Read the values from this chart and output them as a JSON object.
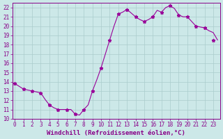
{
  "x": [
    0,
    0.5,
    1,
    1.5,
    2,
    2.5,
    3,
    3.5,
    4,
    4.5,
    5,
    5.5,
    6,
    6.5,
    7,
    7.5,
    8,
    8.5,
    9,
    9.5,
    10,
    10.5,
    11,
    11.5,
    12,
    12.5,
    13,
    13.5,
    14,
    14.5,
    15,
    15.5,
    16,
    16.5,
    17,
    17.5,
    18,
    18.5,
    19,
    19.5,
    20,
    20.5,
    21,
    21.5,
    22,
    22.5,
    23,
    23.5
  ],
  "y": [
    13.8,
    13.5,
    13.2,
    13.1,
    13.0,
    12.9,
    12.8,
    12.1,
    11.5,
    11.2,
    11.0,
    11.0,
    11.0,
    11.0,
    10.5,
    10.4,
    11.0,
    11.5,
    13.0,
    14.2,
    15.5,
    17.0,
    18.5,
    20.0,
    21.3,
    21.5,
    21.8,
    21.4,
    21.0,
    20.7,
    20.5,
    20.7,
    21.0,
    21.7,
    21.5,
    22.0,
    22.2,
    21.9,
    21.2,
    21.0,
    21.0,
    20.5,
    20.0,
    19.9,
    19.8,
    19.5,
    19.3,
    18.5
  ],
  "markers_x": [
    0,
    1,
    2,
    3,
    4,
    5,
    6,
    7,
    8,
    9,
    10,
    11,
    12,
    13,
    14,
    15,
    16,
    17,
    18,
    19,
    20,
    21,
    22,
    23
  ],
  "markers_y": [
    13.8,
    13.2,
    13.0,
    12.8,
    11.5,
    11.0,
    11.0,
    10.5,
    11.0,
    13.0,
    15.5,
    18.5,
    21.3,
    21.8,
    21.0,
    20.5,
    21.0,
    21.5,
    22.2,
    21.2,
    21.0,
    20.0,
    19.8,
    18.5
  ],
  "line_color": "#990099",
  "marker": "*",
  "marker_size": 3.5,
  "bg_color": "#cce8e8",
  "grid_color": "#aacccc",
  "xlabel": "Windchill (Refroidissement éolien,°C)",
  "ylabel": "",
  "xlim": [
    -0.3,
    23.8
  ],
  "ylim": [
    10,
    22.5
  ],
  "yticks": [
    10,
    11,
    12,
    13,
    14,
    15,
    16,
    17,
    18,
    19,
    20,
    21,
    22
  ],
  "xticks": [
    0,
    1,
    2,
    3,
    4,
    5,
    6,
    7,
    8,
    9,
    10,
    11,
    12,
    13,
    14,
    15,
    16,
    17,
    18,
    19,
    20,
    21,
    22,
    23
  ],
  "tick_color": "#880088",
  "tick_fontsize": 5.5,
  "xlabel_fontsize": 6.5
}
